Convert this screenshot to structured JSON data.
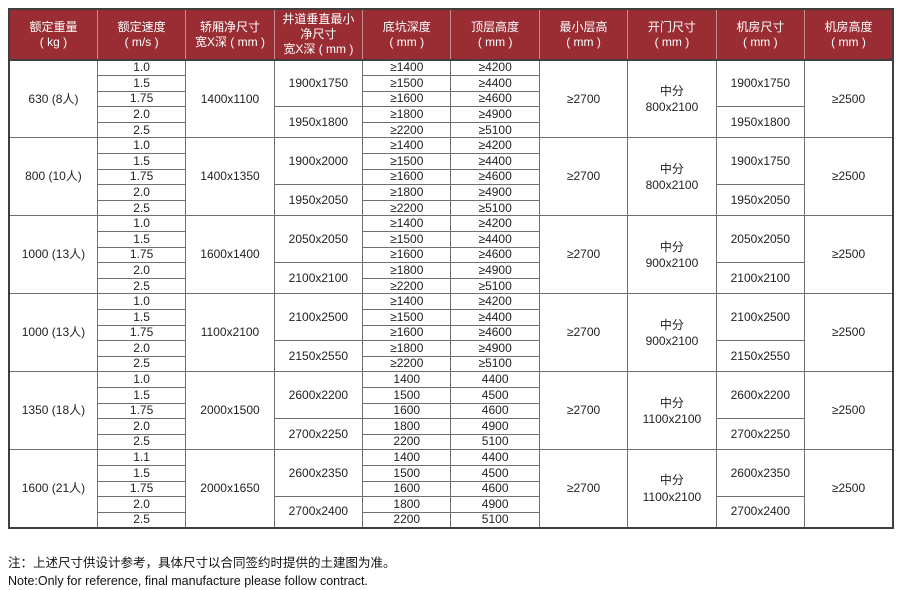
{
  "colors": {
    "page_bg": "#ffffff",
    "header_bg": "#9a2d33",
    "header_text": "#ffffff",
    "grid_border": "#6f6f6f",
    "outer_border": "#3f3f3f",
    "cell_text": "#1f1f1f"
  },
  "table": {
    "headers": [
      {
        "lines": [
          "额定重量",
          "( kg )"
        ]
      },
      {
        "lines": [
          "额定速度",
          "( m/s )"
        ]
      },
      {
        "lines": [
          "轿厢净尺寸",
          "宽X深 ( mm )"
        ]
      },
      {
        "lines": [
          "井道垂直最小",
          "净尺寸",
          "宽X深 ( mm )"
        ]
      },
      {
        "lines": [
          "底坑深度",
          "( mm )"
        ]
      },
      {
        "lines": [
          "顶层高度",
          "( mm )"
        ]
      },
      {
        "lines": [
          "最小层高",
          "( mm )"
        ]
      },
      {
        "lines": [
          "开门尺寸",
          "( mm )"
        ]
      },
      {
        "lines": [
          "机房尺寸",
          "( mm )"
        ]
      },
      {
        "lines": [
          "机房高度",
          "( mm )"
        ]
      }
    ],
    "blocks": [
      {
        "weight": "630 (8人)",
        "speeds": [
          "1.0",
          "1.5",
          "1.75",
          "2.0",
          "2.5"
        ],
        "car": "1400x1100",
        "shaft": [
          "1900x1750",
          "1950x1800"
        ],
        "pit": [
          "≥1400",
          "≥1500",
          "≥1600",
          "≥1800",
          "≥2200"
        ],
        "top": [
          "≥4200",
          "≥4400",
          "≥4600",
          "≥4900",
          "≥5100"
        ],
        "min_floor": "≥2700",
        "door": [
          "中分",
          "800x2100"
        ],
        "machine_room": [
          "1900x1750",
          "1950x1800"
        ],
        "machine_height": "≥2500"
      },
      {
        "weight": "800 (10人)",
        "speeds": [
          "1.0",
          "1.5",
          "1.75",
          "2.0",
          "2.5"
        ],
        "car": "1400x1350",
        "shaft": [
          "1900x2000",
          "1950x2050"
        ],
        "pit": [
          "≥1400",
          "≥1500",
          "≥1600",
          "≥1800",
          "≥2200"
        ],
        "top": [
          "≥4200",
          "≥4400",
          "≥4600",
          "≥4900",
          "≥5100"
        ],
        "min_floor": "≥2700",
        "door": [
          "中分",
          "800x2100"
        ],
        "machine_room": [
          "1900x1750",
          "1950x2050"
        ],
        "machine_height": "≥2500"
      },
      {
        "weight": "1000 (13人)",
        "speeds": [
          "1.0",
          "1.5",
          "1.75",
          "2.0",
          "2.5"
        ],
        "car": "1600x1400",
        "shaft": [
          "2050x2050",
          "2100x2100"
        ],
        "pit": [
          "≥1400",
          "≥1500",
          "≥1600",
          "≥1800",
          "≥2200"
        ],
        "top": [
          "≥4200",
          "≥4400",
          "≥4600",
          "≥4900",
          "≥5100"
        ],
        "min_floor": "≥2700",
        "door": [
          "中分",
          "900x2100"
        ],
        "machine_room": [
          "2050x2050",
          "2100x2100"
        ],
        "machine_height": "≥2500"
      },
      {
        "weight": "1000 (13人)",
        "speeds": [
          "1.0",
          "1.5",
          "1.75",
          "2.0",
          "2.5"
        ],
        "car": "1100x2100",
        "shaft": [
          "2100x2500",
          "2150x2550"
        ],
        "pit": [
          "≥1400",
          "≥1500",
          "≥1600",
          "≥1800",
          "≥2200"
        ],
        "top": [
          "≥4200",
          "≥4400",
          "≥4600",
          "≥4900",
          "≥5100"
        ],
        "min_floor": "≥2700",
        "door": [
          "中分",
          "900x2100"
        ],
        "machine_room": [
          "2100x2500",
          "2150x2550"
        ],
        "machine_height": "≥2500"
      },
      {
        "weight": "1350 (18人)",
        "speeds": [
          "1.0",
          "1.5",
          "1.75",
          "2.0",
          "2.5"
        ],
        "car": "2000x1500",
        "shaft": [
          "2600x2200",
          "2700x2250"
        ],
        "pit": [
          "1400",
          "1500",
          "1600",
          "1800",
          "2200"
        ],
        "top": [
          "4400",
          "4500",
          "4600",
          "4900",
          "5100"
        ],
        "min_floor": "≥2700",
        "door": [
          "中分",
          "1100x2100"
        ],
        "machine_room": [
          "2600x2200",
          "2700x2250"
        ],
        "machine_height": "≥2500"
      },
      {
        "weight": "1600 (21人)",
        "speeds": [
          "1.1",
          "1.5",
          "1.75",
          "2.0",
          "2.5"
        ],
        "car": "2000x1650",
        "shaft": [
          "2600x2350",
          "2700x2400"
        ],
        "pit": [
          "1400",
          "1500",
          "1600",
          "1800",
          "2200"
        ],
        "top": [
          "4400",
          "4500",
          "4600",
          "4900",
          "5100"
        ],
        "min_floor": "≥2700",
        "door": [
          "中分",
          "1100x2100"
        ],
        "machine_room": [
          "2600x2350",
          "2700x2400"
        ],
        "machine_height": "≥2500"
      }
    ]
  },
  "notes": {
    "line1": "注：上述尺寸供设计参考，具体尺寸以合同签约时提供的土建图为准。",
    "line2": "Note:Only for reference, final manufacture please follow contract."
  }
}
